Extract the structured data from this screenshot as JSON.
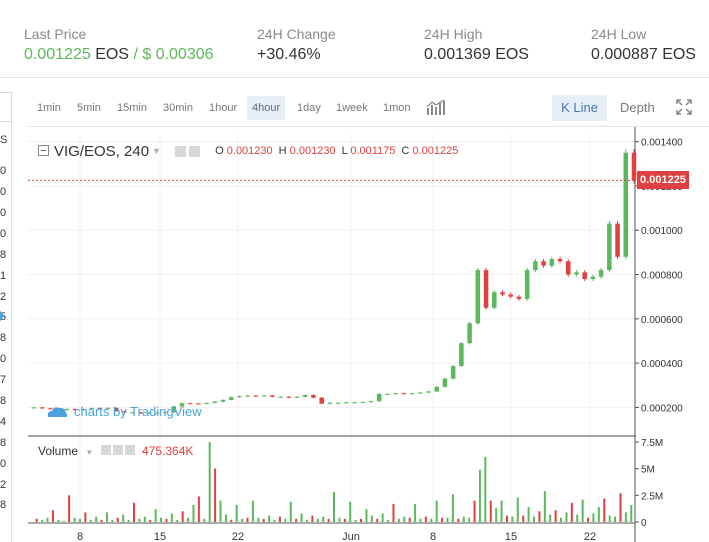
{
  "ticker": {
    "last_price_label": "Last Price",
    "last_price_value": "0.001225",
    "last_price_unit": "EOS",
    "last_price_sep": "/ $",
    "last_price_usd": "0.00306",
    "change_label": "24H Change",
    "change_value": "+30.46%",
    "high_label": "24H High",
    "high_value": "0.001369",
    "high_unit": "EOS",
    "low_label": "24H Low",
    "low_value": "0.000887",
    "low_unit": "EOS"
  },
  "left_strip": {
    "digits": [
      "S",
      "0",
      "0",
      "0",
      "0",
      "8",
      "1",
      "2",
      "5",
      "8",
      "0",
      "7",
      "8",
      "4",
      "8",
      "0",
      "2",
      "8"
    ]
  },
  "toolbar": {
    "timeframes": [
      "1min",
      "5min",
      "15min",
      "30min",
      "1hour",
      "4hour",
      "1day",
      "1week",
      "1mon"
    ],
    "active_timeframe": "4hour",
    "kline_label": "K Line",
    "depth_label": "Depth",
    "indicators_icon": "indicators-icon",
    "fullscreen_icon": "fullscreen-icon"
  },
  "legend": {
    "symbol": "VIG/EOS, 240",
    "o_label": "O",
    "o_value": "0.001230",
    "h_label": "H",
    "h_value": "0.001230",
    "l_label": "L",
    "l_value": "0.001175",
    "c_label": "C",
    "c_value": "0.001225"
  },
  "volume_legend": {
    "label": "Volume",
    "value": "475.364K"
  },
  "watermark": "charts by TradingView",
  "price_tag": "0.001225",
  "colors": {
    "up": "#5cb85c",
    "down": "#e0403f",
    "accent": "#4aa3df"
  },
  "chart_data": [
    {
      "type": "line",
      "title": "VIG/EOS, 240",
      "xlabel": "",
      "ylabel": "",
      "x_ticks": [
        "8",
        "15",
        "22",
        "Jun",
        "8",
        "15",
        "22"
      ],
      "y_ticks": [
        "0.001400",
        "0.001200",
        "0.001000",
        "0.000800",
        "0.000600",
        "0.000400",
        "0.000200"
      ],
      "ylim": [
        8e-05,
        0.00143
      ],
      "grid": true,
      "current_price_line": 0.001225,
      "series": [
        {
          "values": [
            0.0002,
            0.000196,
            0.000193,
            0.000188,
            0.000193,
            0.000188,
            0.000193,
            0.000197,
            0.000196,
            0.000198,
            0.000183,
            0.000178,
            0.000178,
            0.000173,
            0.000176,
            0.000176,
            0.000178,
            0.000205,
            0.000219,
            0.000218,
            0.000217,
            0.00022,
            0.000226,
            0.000234,
            0.000246,
            0.000251,
            0.000253,
            0.000252,
            0.000254,
            0.000248,
            0.000248,
            0.000245,
            0.000248,
            0.000256,
            0.000244,
            0.000217,
            0.000221,
            0.000221,
            0.000223,
            0.000223,
            0.000224,
            0.000228,
            0.000261,
            0.000261,
            0.000264,
            0.000263,
            0.000264,
            0.000267,
            0.000272,
            0.000293,
            0.00033,
            0.000387,
            0.00049,
            0.00058,
            0.00082,
            0.00065,
            0.00072,
            0.00071,
            0.0007,
            0.00069,
            0.00082,
            0.00086,
            0.00084,
            0.00087,
            0.00086,
            0.0008,
            0.00081,
            0.00078,
            0.00079,
            0.00082,
            0.00103,
            0.00088,
            0.00135,
            0.001225
          ]
        }
      ]
    },
    {
      "type": "bar",
      "title": "Volume",
      "y_ticks": [
        "7.5M",
        "5M",
        "2.5M",
        "0"
      ],
      "ylim": [
        0,
        7500000
      ],
      "values": [
        0.3,
        0.2,
        0.4,
        1.1,
        0.2,
        0.1,
        2.5,
        0.4,
        0.3,
        0.9,
        0.2,
        0.5,
        0.2,
        0.9,
        0.2,
        0.4,
        0.7,
        0.2,
        1.8,
        0.3,
        0.5,
        0.2,
        1.2,
        0.4,
        0.3,
        0.8,
        0.2,
        1.0,
        0.4,
        1.6,
        2.4,
        0.3,
        7.5,
        5.0,
        2.0,
        0.7,
        0.2,
        1.6,
        0.3,
        0.4,
        2.0,
        0.4,
        0.3,
        0.6,
        0.2,
        0.5,
        0.3,
        1.9,
        0.3,
        0.8,
        0.2,
        0.6,
        0.3,
        0.5,
        0.3,
        2.8,
        0.4,
        0.3,
        1.9,
        0.2,
        0.3,
        1.2,
        0.6,
        0.3,
        0.8,
        0.2,
        1.7,
        0.3,
        0.5,
        0.4,
        1.7,
        0.3,
        0.5,
        0.3,
        2.0,
        0.4,
        0.4,
        2.6,
        0.3,
        0.5,
        0.4,
        2.0,
        4.9,
        6.1,
        2.0,
        1.3,
        2.0,
        0.6,
        0.5,
        2.3,
        0.6,
        1.4,
        0.5,
        1.0,
        2.9,
        0.7,
        1.1,
        0.4,
        0.9,
        1.8,
        0.7,
        2.1,
        0.4,
        0.8,
        1.4,
        2.2,
        0.6,
        0.5,
        2.7,
        0.9,
        1.6
      ]
    }
  ]
}
